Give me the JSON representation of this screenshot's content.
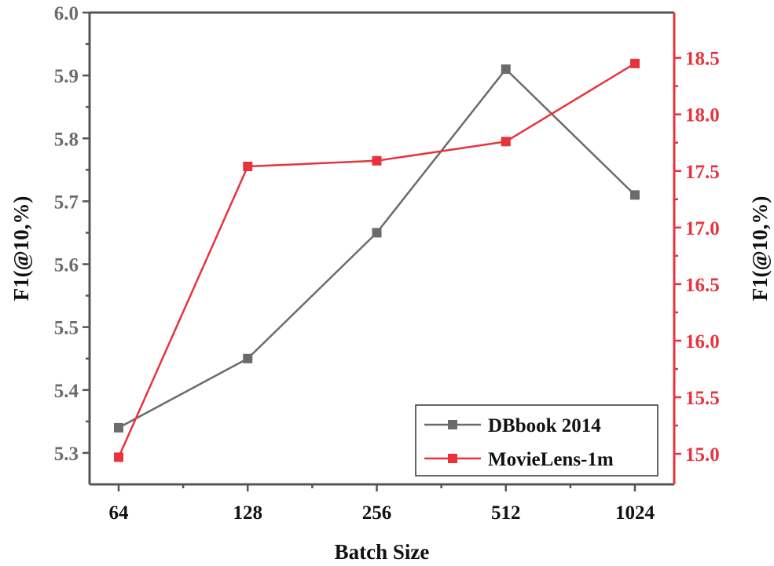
{
  "chart_data": {
    "type": "line",
    "categories": [
      "64",
      "128",
      "256",
      "512",
      "1024"
    ],
    "xlabel": "Batch Size",
    "series": [
      {
        "name": "DBbook 2014",
        "axis": "left",
        "color": "#6b6b6b",
        "marker": "square",
        "values": [
          5.34,
          5.45,
          5.65,
          5.91,
          5.71
        ]
      },
      {
        "name": "MovieLens-1m",
        "axis": "right",
        "color": "#e8333c",
        "marker": "square",
        "values": [
          14.97,
          17.54,
          17.59,
          17.76,
          18.45
        ]
      }
    ],
    "y_left": {
      "label": "F1(@10,%)",
      "range": [
        5.25,
        6.0
      ],
      "ticks": [
        "5.3",
        "5.4",
        "5.5",
        "5.6",
        "5.7",
        "5.8",
        "5.9",
        "6.0"
      ],
      "color": "#6b6b6b"
    },
    "y_right": {
      "label": "F1(@10,%)",
      "range": [
        14.73,
        18.9
      ],
      "ticks": [
        "15.0",
        "15.5",
        "16.0",
        "16.5",
        "17.0",
        "17.5",
        "18.0",
        "18.5"
      ],
      "color": "#e8333c"
    },
    "grid": false,
    "legend": "bottom-right"
  }
}
